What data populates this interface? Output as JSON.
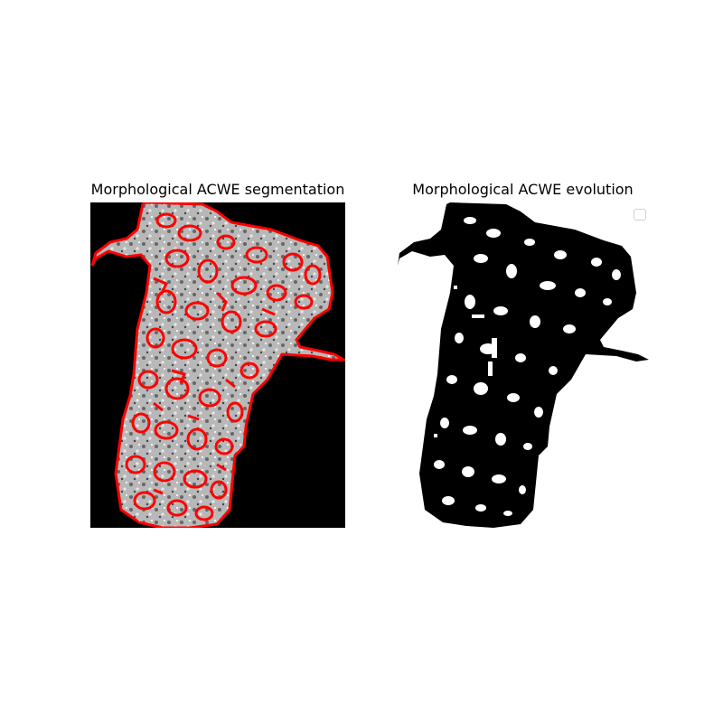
{
  "figure": {
    "left_panel": {
      "title": "Morphological ACWE segmentation",
      "image": "grayscale textured tissue with red contour outlines on black background",
      "contour_color": "#ff0000",
      "background_color": "#000000"
    },
    "right_panel": {
      "title": "Morphological ACWE evolution",
      "image": "binary mask, black region with white blobs on white background",
      "legend": "empty-legend"
    }
  }
}
